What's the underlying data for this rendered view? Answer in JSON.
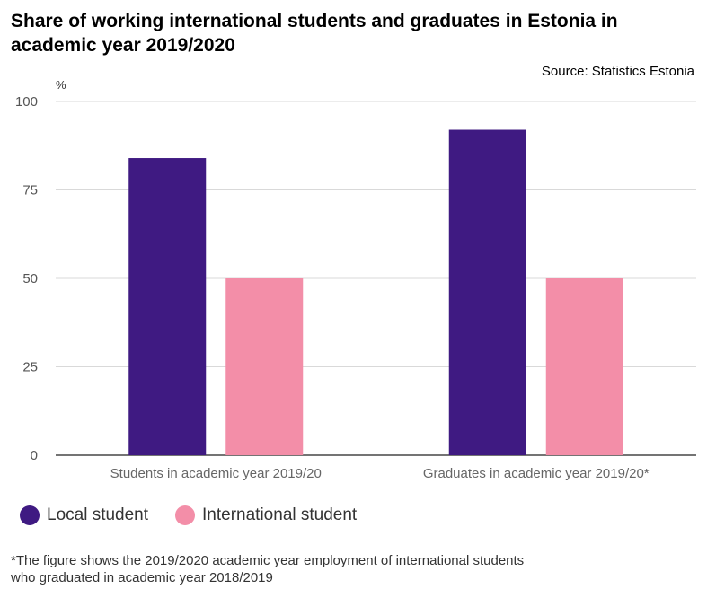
{
  "title": "Share of working international students and graduates in Estonia in academic year 2019/2020",
  "source": "Source: Statistics Estonia",
  "footnote": "*The figure shows the 2019/2020 academic year employment of international students who graduated in academic year 2018/2019",
  "chart_data": {
    "type": "bar",
    "ylabel": "%",
    "ylim": [
      0,
      100
    ],
    "yticks": [
      0,
      25,
      50,
      75,
      100
    ],
    "grid": true,
    "legend_position": "bottom-left",
    "categories": [
      "Students in academic year 2019/20",
      "Graduates in academic year 2019/20*"
    ],
    "series": [
      {
        "name": "Local student",
        "color": "#3f1a82",
        "values": [
          84,
          92
        ]
      },
      {
        "name": "International student",
        "color": "#f38ea8",
        "values": [
          50,
          50
        ]
      }
    ]
  }
}
